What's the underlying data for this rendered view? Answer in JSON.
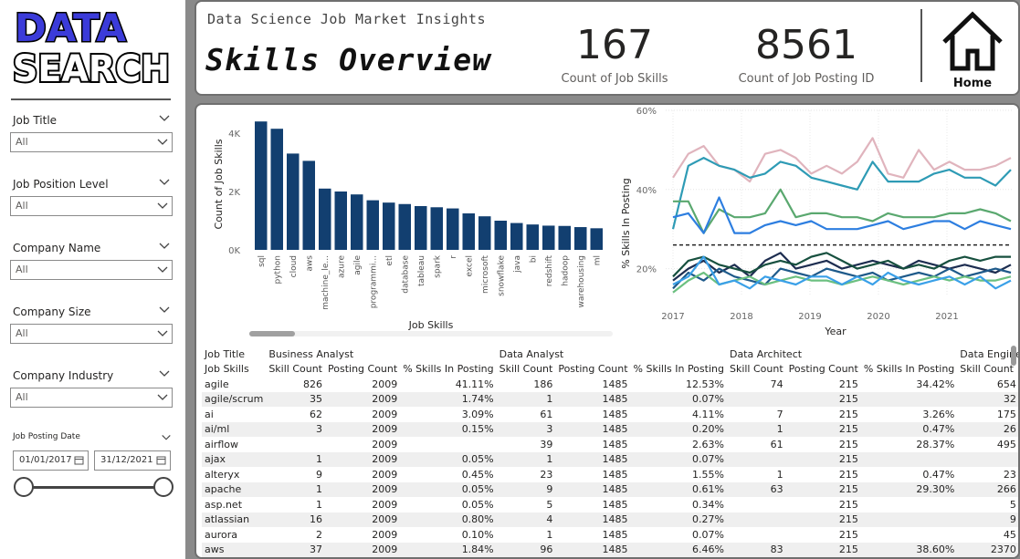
{
  "logo": {
    "line1": "DATA",
    "line2": "SEARCH"
  },
  "colors": {
    "logo_fill": "#3b3bd9",
    "bar": "#123f70",
    "header_border": "#6f6f6f"
  },
  "filters": [
    {
      "label": "Job Title",
      "value": "All"
    },
    {
      "label": "Job Position Level",
      "value": "All"
    },
    {
      "label": "Company Name",
      "value": "All"
    },
    {
      "label": "Company Size",
      "value": "All"
    },
    {
      "label": "Company Industry",
      "value": "All"
    }
  ],
  "date_filter": {
    "label": "Job Posting Date",
    "start": "01/01/2017",
    "end": "31/12/2021"
  },
  "header": {
    "subtitle": "Data Science Job Market Insights",
    "title": "Skills Overview",
    "kpi1": {
      "value": "167",
      "label": "Count of Job Skills"
    },
    "kpi2": {
      "value": "8561",
      "label": "Count of Job Posting ID"
    },
    "home_label": "Home"
  },
  "chart_data": [
    {
      "type": "bar",
      "xlabel": "Job Skills",
      "ylabel": "Count of Job Skills",
      "yticks": [
        "0K",
        "2K",
        "4K"
      ],
      "ylim": [
        0,
        4500
      ],
      "categories": [
        "sql",
        "python",
        "cloud",
        "aws",
        "machine_le...",
        "azure",
        "agile",
        "programmi...",
        "etl",
        "database",
        "tableau",
        "spark",
        "r",
        "excel",
        "microsoft",
        "snowflake",
        "java",
        "bi",
        "redshift",
        "hadoop",
        "warehousing",
        "ml"
      ],
      "values": [
        4400,
        4150,
        3300,
        3050,
        2100,
        2000,
        1900,
        1700,
        1620,
        1570,
        1500,
        1460,
        1420,
        1250,
        1150,
        1000,
        920,
        870,
        830,
        820,
        780,
        740
      ]
    },
    {
      "type": "line",
      "xlabel": "Year",
      "ylabel": "% Skills In Posting",
      "yticks": [
        "20%",
        "40%",
        "60%"
      ],
      "ylim": [
        0.13,
        0.6
      ],
      "xticks": [
        "2017",
        "2018",
        "2019",
        "2020",
        "2021"
      ],
      "series": [
        {
          "color": "#e0b4bd",
          "values": [
            0.43,
            0.49,
            0.51,
            0.46,
            0.45,
            0.42,
            0.49,
            0.5,
            0.48,
            0.44,
            0.46,
            0.44,
            0.47,
            0.53,
            0.44,
            0.43,
            0.5,
            0.45,
            0.47,
            0.45,
            0.45,
            0.46,
            0.48
          ]
        },
        {
          "color": "#2e9bb5",
          "values": [
            0.3,
            0.46,
            0.48,
            0.46,
            0.45,
            0.43,
            0.44,
            0.47,
            0.46,
            0.43,
            0.42,
            0.41,
            0.4,
            0.47,
            0.42,
            0.42,
            0.42,
            0.44,
            0.45,
            0.43,
            0.43,
            0.41,
            0.45
          ]
        },
        {
          "color": "#5aa86f",
          "values": [
            0.37,
            0.37,
            0.29,
            0.35,
            0.33,
            0.33,
            0.34,
            0.4,
            0.33,
            0.34,
            0.34,
            0.33,
            0.33,
            0.32,
            0.34,
            0.33,
            0.33,
            0.33,
            0.34,
            0.34,
            0.35,
            0.34,
            0.32
          ]
        },
        {
          "color": "#2d7ee0",
          "values": [
            0.33,
            0.34,
            0.29,
            0.38,
            0.29,
            0.29,
            0.31,
            0.32,
            0.31,
            0.32,
            0.3,
            0.3,
            0.3,
            0.31,
            0.32,
            0.3,
            0.31,
            0.32,
            0.32,
            0.3,
            0.32,
            0.31,
            0.3
          ]
        },
        {
          "color": "#1d2d50",
          "values": [
            0.17,
            0.2,
            0.22,
            0.19,
            0.21,
            0.18,
            0.22,
            0.24,
            0.2,
            0.21,
            0.22,
            0.2,
            0.21,
            0.22,
            0.21,
            0.2,
            0.22,
            0.21,
            0.2,
            0.21,
            0.2,
            0.19,
            0.21
          ]
        },
        {
          "color": "#17503f",
          "values": [
            0.18,
            0.22,
            0.23,
            0.21,
            0.2,
            0.19,
            0.21,
            0.22,
            0.21,
            0.23,
            0.24,
            0.22,
            0.2,
            0.21,
            0.22,
            0.2,
            0.21,
            0.2,
            0.22,
            0.23,
            0.22,
            0.23,
            0.23
          ]
        },
        {
          "color": "#1e5a8a",
          "values": [
            0.15,
            0.19,
            0.17,
            0.2,
            0.18,
            0.17,
            0.16,
            0.2,
            0.19,
            0.18,
            0.2,
            0.19,
            0.18,
            0.19,
            0.17,
            0.18,
            0.19,
            0.18,
            0.2,
            0.18,
            0.19,
            0.2,
            0.19
          ]
        },
        {
          "color": "#6cc080",
          "values": [
            0.14,
            0.17,
            0.19,
            0.16,
            0.17,
            0.18,
            0.16,
            0.17,
            0.18,
            0.17,
            0.17,
            0.16,
            0.17,
            0.18,
            0.17,
            0.16,
            0.17,
            0.18,
            0.17,
            0.18,
            0.17,
            0.17,
            0.18
          ]
        },
        {
          "color": "#3aa0e8",
          "values": [
            0.16,
            0.18,
            0.23,
            0.16,
            0.17,
            0.15,
            0.18,
            0.17,
            0.16,
            0.18,
            0.18,
            0.16,
            0.18,
            0.16,
            0.19,
            0.17,
            0.16,
            0.17,
            0.18,
            0.16,
            0.18,
            0.15,
            0.17
          ]
        }
      ],
      "reference_line": 0.26
    }
  ],
  "table": {
    "row_header_top": "Job Title",
    "row_header": "Job Skills",
    "groups": [
      "Business Analyst",
      "Data Analyst",
      "Data Architect",
      "Data Enginee"
    ],
    "subcols": [
      "Skill Count",
      "Posting Count",
      "% Skills In Posting"
    ],
    "last_partial": "P",
    "rows": [
      {
        "skill": "agile",
        "cells": [
          "826",
          "2009",
          "41.11%",
          "186",
          "1485",
          "12.53%",
          "74",
          "215",
          "34.42%",
          "654"
        ]
      },
      {
        "skill": "agile/scrum",
        "cells": [
          "35",
          "2009",
          "1.74%",
          "1",
          "1485",
          "0.07%",
          "",
          "215",
          "",
          "32"
        ]
      },
      {
        "skill": "ai",
        "cells": [
          "62",
          "2009",
          "3.09%",
          "61",
          "1485",
          "4.11%",
          "7",
          "215",
          "3.26%",
          "175"
        ]
      },
      {
        "skill": "ai/ml",
        "cells": [
          "3",
          "2009",
          "0.15%",
          "3",
          "1485",
          "0.20%",
          "1",
          "215",
          "0.47%",
          "26"
        ]
      },
      {
        "skill": "airflow",
        "cells": [
          "",
          "2009",
          "",
          "39",
          "1485",
          "2.63%",
          "61",
          "215",
          "28.37%",
          "495"
        ]
      },
      {
        "skill": "ajax",
        "cells": [
          "1",
          "2009",
          "0.05%",
          "1",
          "1485",
          "0.07%",
          "",
          "215",
          "",
          ""
        ]
      },
      {
        "skill": "alteryx",
        "cells": [
          "9",
          "2009",
          "0.45%",
          "23",
          "1485",
          "1.55%",
          "1",
          "215",
          "0.47%",
          "23"
        ]
      },
      {
        "skill": "apache",
        "cells": [
          "1",
          "2009",
          "0.05%",
          "9",
          "1485",
          "0.61%",
          "63",
          "215",
          "29.30%",
          "266"
        ]
      },
      {
        "skill": "asp.net",
        "cells": [
          "1",
          "2009",
          "0.05%",
          "5",
          "1485",
          "0.34%",
          "",
          "215",
          "",
          "5"
        ]
      },
      {
        "skill": "atlassian",
        "cells": [
          "16",
          "2009",
          "0.80%",
          "4",
          "1485",
          "0.27%",
          "",
          "215",
          "",
          "9"
        ]
      },
      {
        "skill": "aurora",
        "cells": [
          "2",
          "2009",
          "0.10%",
          "1",
          "1485",
          "0.07%",
          "",
          "215",
          "",
          "45"
        ]
      },
      {
        "skill": "aws",
        "cells": [
          "37",
          "2009",
          "1.84%",
          "96",
          "1485",
          "6.46%",
          "83",
          "215",
          "38.60%",
          "2370"
        ]
      }
    ]
  }
}
